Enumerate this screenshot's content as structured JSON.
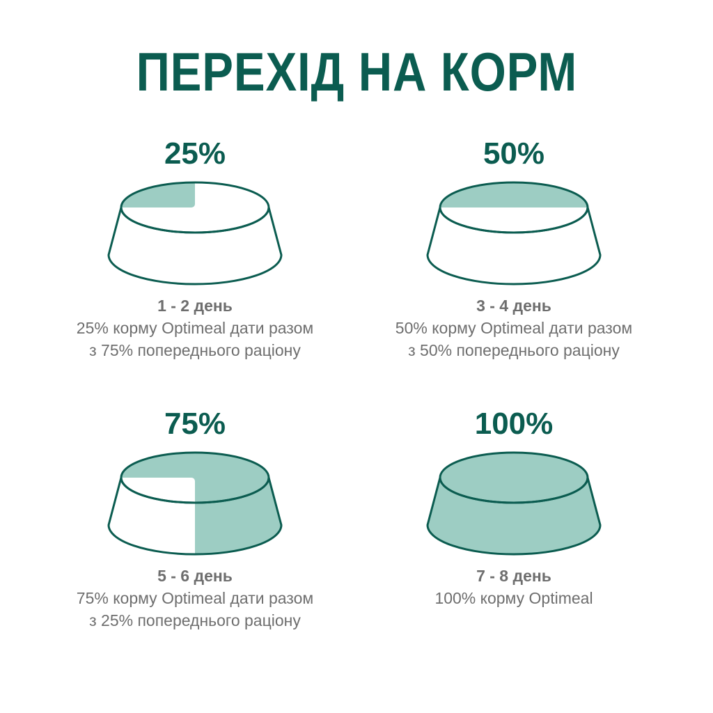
{
  "title": "ПЕРЕХІД НА КОРМ",
  "colors": {
    "primary": "#0b5c50",
    "fill": "#9dcdc3",
    "text": "#6e6e6e"
  },
  "steps": [
    {
      "percent_label": "25%",
      "fill_percent": 25,
      "days": "1 - 2 день",
      "line1": "25% корму Optimeal дати разом",
      "line2": "з 75% попереднього раціону"
    },
    {
      "percent_label": "50%",
      "fill_percent": 50,
      "days": "3 - 4 день",
      "line1": "50% корму Optimeal дати разом",
      "line2": "з 50% попереднього раціону"
    },
    {
      "percent_label": "75%",
      "fill_percent": 75,
      "days": "5 - 6 день",
      "line1": "75% корму Optimeal дати разом",
      "line2": "з 25% попереднього раціону"
    },
    {
      "percent_label": "100%",
      "fill_percent": 100,
      "days": "7 - 8 день",
      "line1": "100% корму Optimeal",
      "line2": ""
    }
  ]
}
